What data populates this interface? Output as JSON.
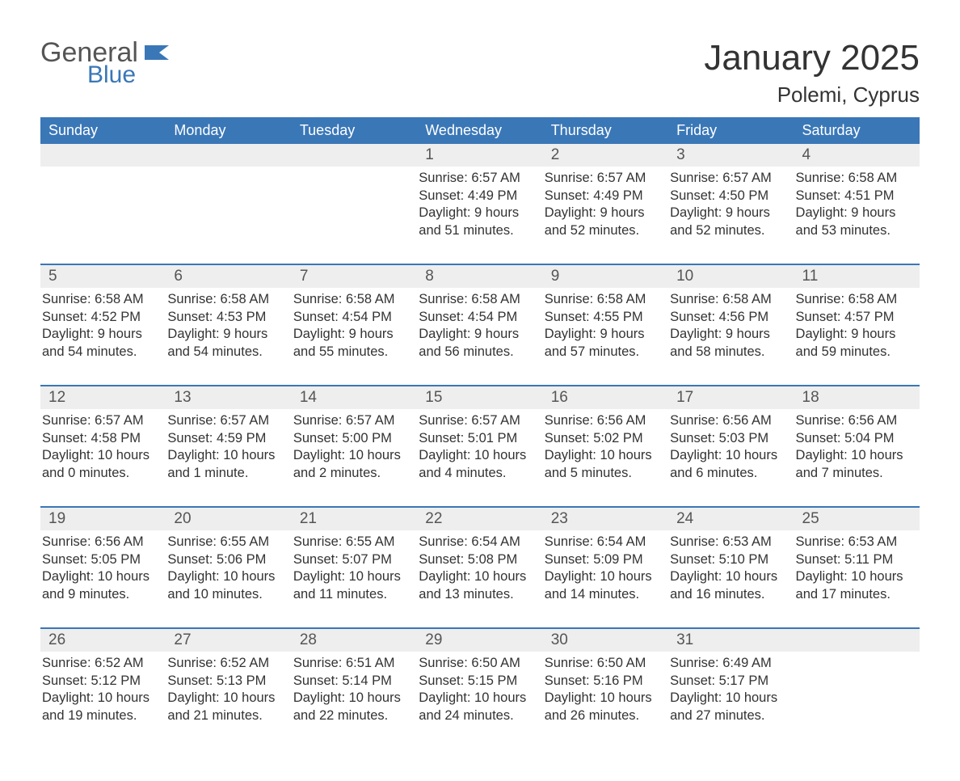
{
  "colors": {
    "brand_blue": "#3a77b7",
    "header_text": "#ffffff",
    "daynum_bg": "#eeeeee",
    "daynum_text": "#555555",
    "body_text": "#333333",
    "logo_gray": "#555555",
    "background": "#ffffff",
    "week_border": "#3a77b7"
  },
  "typography": {
    "title_fontsize": 44,
    "location_fontsize": 26,
    "dayhead_fontsize": 18,
    "daynum_fontsize": 19,
    "cell_fontsize": 16.5,
    "font_family": "Arial"
  },
  "logo": {
    "text_general": "General",
    "text_blue": "Blue"
  },
  "title": "January 2025",
  "location": "Polemi, Cyprus",
  "day_headers": [
    "Sunday",
    "Monday",
    "Tuesday",
    "Wednesday",
    "Thursday",
    "Friday",
    "Saturday"
  ],
  "weeks": [
    [
      {
        "day": "",
        "sunrise": "",
        "sunset": "",
        "daylight1": "",
        "daylight2": ""
      },
      {
        "day": "",
        "sunrise": "",
        "sunset": "",
        "daylight1": "",
        "daylight2": ""
      },
      {
        "day": "",
        "sunrise": "",
        "sunset": "",
        "daylight1": "",
        "daylight2": ""
      },
      {
        "day": "1",
        "sunrise": "Sunrise: 6:57 AM",
        "sunset": "Sunset: 4:49 PM",
        "daylight1": "Daylight: 9 hours",
        "daylight2": "and 51 minutes."
      },
      {
        "day": "2",
        "sunrise": "Sunrise: 6:57 AM",
        "sunset": "Sunset: 4:49 PM",
        "daylight1": "Daylight: 9 hours",
        "daylight2": "and 52 minutes."
      },
      {
        "day": "3",
        "sunrise": "Sunrise: 6:57 AM",
        "sunset": "Sunset: 4:50 PM",
        "daylight1": "Daylight: 9 hours",
        "daylight2": "and 52 minutes."
      },
      {
        "day": "4",
        "sunrise": "Sunrise: 6:58 AM",
        "sunset": "Sunset: 4:51 PM",
        "daylight1": "Daylight: 9 hours",
        "daylight2": "and 53 minutes."
      }
    ],
    [
      {
        "day": "5",
        "sunrise": "Sunrise: 6:58 AM",
        "sunset": "Sunset: 4:52 PM",
        "daylight1": "Daylight: 9 hours",
        "daylight2": "and 54 minutes."
      },
      {
        "day": "6",
        "sunrise": "Sunrise: 6:58 AM",
        "sunset": "Sunset: 4:53 PM",
        "daylight1": "Daylight: 9 hours",
        "daylight2": "and 54 minutes."
      },
      {
        "day": "7",
        "sunrise": "Sunrise: 6:58 AM",
        "sunset": "Sunset: 4:54 PM",
        "daylight1": "Daylight: 9 hours",
        "daylight2": "and 55 minutes."
      },
      {
        "day": "8",
        "sunrise": "Sunrise: 6:58 AM",
        "sunset": "Sunset: 4:54 PM",
        "daylight1": "Daylight: 9 hours",
        "daylight2": "and 56 minutes."
      },
      {
        "day": "9",
        "sunrise": "Sunrise: 6:58 AM",
        "sunset": "Sunset: 4:55 PM",
        "daylight1": "Daylight: 9 hours",
        "daylight2": "and 57 minutes."
      },
      {
        "day": "10",
        "sunrise": "Sunrise: 6:58 AM",
        "sunset": "Sunset: 4:56 PM",
        "daylight1": "Daylight: 9 hours",
        "daylight2": "and 58 minutes."
      },
      {
        "day": "11",
        "sunrise": "Sunrise: 6:58 AM",
        "sunset": "Sunset: 4:57 PM",
        "daylight1": "Daylight: 9 hours",
        "daylight2": "and 59 minutes."
      }
    ],
    [
      {
        "day": "12",
        "sunrise": "Sunrise: 6:57 AM",
        "sunset": "Sunset: 4:58 PM",
        "daylight1": "Daylight: 10 hours",
        "daylight2": "and 0 minutes."
      },
      {
        "day": "13",
        "sunrise": "Sunrise: 6:57 AM",
        "sunset": "Sunset: 4:59 PM",
        "daylight1": "Daylight: 10 hours",
        "daylight2": "and 1 minute."
      },
      {
        "day": "14",
        "sunrise": "Sunrise: 6:57 AM",
        "sunset": "Sunset: 5:00 PM",
        "daylight1": "Daylight: 10 hours",
        "daylight2": "and 2 minutes."
      },
      {
        "day": "15",
        "sunrise": "Sunrise: 6:57 AM",
        "sunset": "Sunset: 5:01 PM",
        "daylight1": "Daylight: 10 hours",
        "daylight2": "and 4 minutes."
      },
      {
        "day": "16",
        "sunrise": "Sunrise: 6:56 AM",
        "sunset": "Sunset: 5:02 PM",
        "daylight1": "Daylight: 10 hours",
        "daylight2": "and 5 minutes."
      },
      {
        "day": "17",
        "sunrise": "Sunrise: 6:56 AM",
        "sunset": "Sunset: 5:03 PM",
        "daylight1": "Daylight: 10 hours",
        "daylight2": "and 6 minutes."
      },
      {
        "day": "18",
        "sunrise": "Sunrise: 6:56 AM",
        "sunset": "Sunset: 5:04 PM",
        "daylight1": "Daylight: 10 hours",
        "daylight2": "and 7 minutes."
      }
    ],
    [
      {
        "day": "19",
        "sunrise": "Sunrise: 6:56 AM",
        "sunset": "Sunset: 5:05 PM",
        "daylight1": "Daylight: 10 hours",
        "daylight2": "and 9 minutes."
      },
      {
        "day": "20",
        "sunrise": "Sunrise: 6:55 AM",
        "sunset": "Sunset: 5:06 PM",
        "daylight1": "Daylight: 10 hours",
        "daylight2": "and 10 minutes."
      },
      {
        "day": "21",
        "sunrise": "Sunrise: 6:55 AM",
        "sunset": "Sunset: 5:07 PM",
        "daylight1": "Daylight: 10 hours",
        "daylight2": "and 11 minutes."
      },
      {
        "day": "22",
        "sunrise": "Sunrise: 6:54 AM",
        "sunset": "Sunset: 5:08 PM",
        "daylight1": "Daylight: 10 hours",
        "daylight2": "and 13 minutes."
      },
      {
        "day": "23",
        "sunrise": "Sunrise: 6:54 AM",
        "sunset": "Sunset: 5:09 PM",
        "daylight1": "Daylight: 10 hours",
        "daylight2": "and 14 minutes."
      },
      {
        "day": "24",
        "sunrise": "Sunrise: 6:53 AM",
        "sunset": "Sunset: 5:10 PM",
        "daylight1": "Daylight: 10 hours",
        "daylight2": "and 16 minutes."
      },
      {
        "day": "25",
        "sunrise": "Sunrise: 6:53 AM",
        "sunset": "Sunset: 5:11 PM",
        "daylight1": "Daylight: 10 hours",
        "daylight2": "and 17 minutes."
      }
    ],
    [
      {
        "day": "26",
        "sunrise": "Sunrise: 6:52 AM",
        "sunset": "Sunset: 5:12 PM",
        "daylight1": "Daylight: 10 hours",
        "daylight2": "and 19 minutes."
      },
      {
        "day": "27",
        "sunrise": "Sunrise: 6:52 AM",
        "sunset": "Sunset: 5:13 PM",
        "daylight1": "Daylight: 10 hours",
        "daylight2": "and 21 minutes."
      },
      {
        "day": "28",
        "sunrise": "Sunrise: 6:51 AM",
        "sunset": "Sunset: 5:14 PM",
        "daylight1": "Daylight: 10 hours",
        "daylight2": "and 22 minutes."
      },
      {
        "day": "29",
        "sunrise": "Sunrise: 6:50 AM",
        "sunset": "Sunset: 5:15 PM",
        "daylight1": "Daylight: 10 hours",
        "daylight2": "and 24 minutes."
      },
      {
        "day": "30",
        "sunrise": "Sunrise: 6:50 AM",
        "sunset": "Sunset: 5:16 PM",
        "daylight1": "Daylight: 10 hours",
        "daylight2": "and 26 minutes."
      },
      {
        "day": "31",
        "sunrise": "Sunrise: 6:49 AM",
        "sunset": "Sunset: 5:17 PM",
        "daylight1": "Daylight: 10 hours",
        "daylight2": "and 27 minutes."
      },
      {
        "day": "",
        "sunrise": "",
        "sunset": "",
        "daylight1": "",
        "daylight2": ""
      }
    ]
  ]
}
